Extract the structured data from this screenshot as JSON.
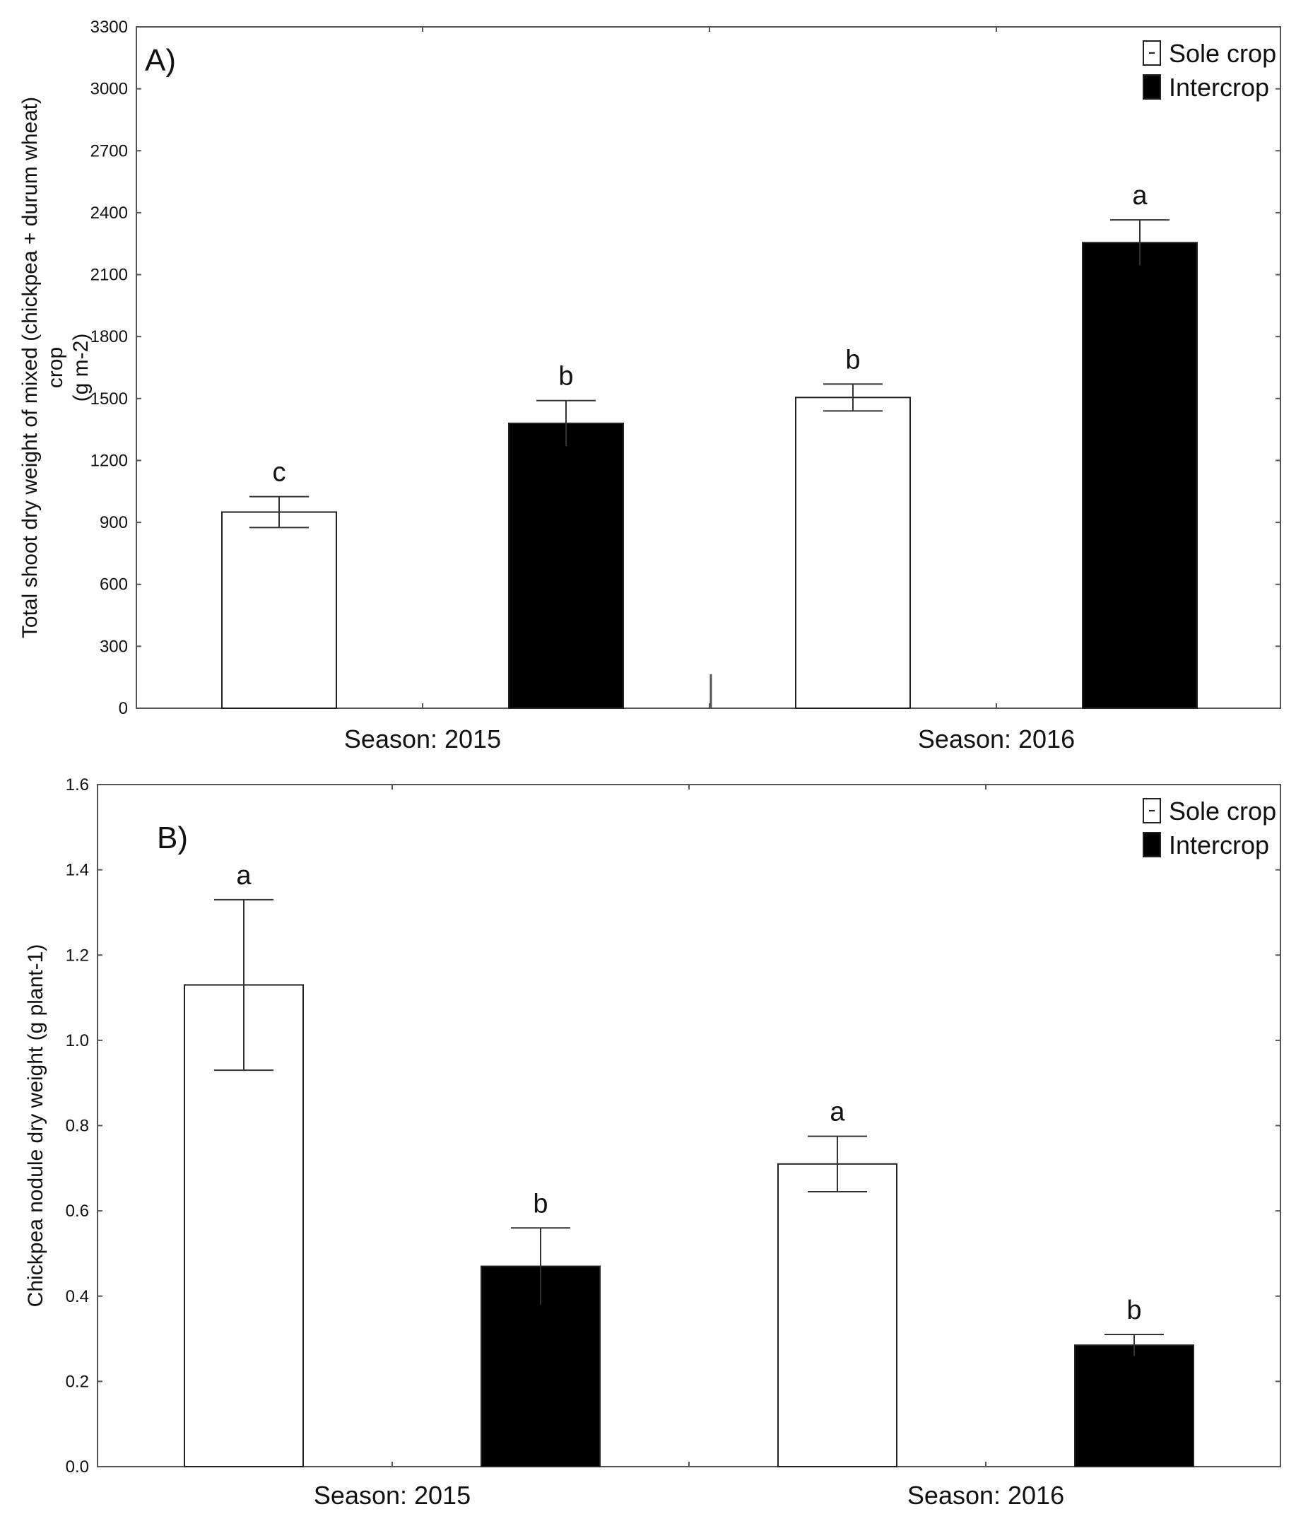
{
  "chart_data": [
    {
      "type": "bar",
      "panel_label": "A)",
      "categories": [
        "Season: 2015",
        "Season: 2016"
      ],
      "series": [
        {
          "name": "Sole crop",
          "color": "#ffffff",
          "values": [
            950,
            1505
          ],
          "error": [
            75,
            65
          ],
          "letters": [
            "c",
            "b"
          ]
        },
        {
          "name": "Intercrop",
          "color": "#000000",
          "values": [
            1380,
            2255
          ],
          "error": [
            110,
            110
          ],
          "letters": [
            "b",
            "a"
          ]
        }
      ],
      "ylabel_lines": [
        "Total shoot dry weight of mixed (chickpea + durum wheat)",
        "crop",
        "(g m-2)"
      ],
      "ylim": [
        0,
        3300
      ],
      "yticks": [
        0,
        300,
        600,
        900,
        1200,
        1500,
        1800,
        2100,
        2400,
        2700,
        3000,
        3300
      ],
      "ytick_labels": [
        "0",
        "300",
        "600",
        "900",
        "1200",
        "1500",
        "1800",
        "2100",
        "2400",
        "2700",
        "3000",
        "3300"
      ],
      "legend": {
        "position": "top-right",
        "entries": [
          "Sole crop",
          "Intercrop"
        ]
      }
    },
    {
      "type": "bar",
      "panel_label": "B)",
      "categories": [
        "Season: 2015",
        "Season: 2016"
      ],
      "series": [
        {
          "name": "Sole crop",
          "color": "#ffffff",
          "values": [
            1.13,
            0.71
          ],
          "error": [
            0.2,
            0.065
          ],
          "letters": [
            "a",
            "a"
          ]
        },
        {
          "name": "Intercrop",
          "color": "#000000",
          "values": [
            0.47,
            0.285
          ],
          "error": [
            0.09,
            0.025
          ],
          "letters": [
            "b",
            "b"
          ]
        }
      ],
      "ylabel_lines": [
        "Chickpea nodule dry weight (g plant-1)"
      ],
      "ylim": [
        0,
        1.6
      ],
      "yticks": [
        0,
        0.2,
        0.4,
        0.6,
        0.8,
        1.0,
        1.2,
        1.4,
        1.6
      ],
      "ytick_labels": [
        "0.0",
        "0.2",
        "0.4",
        "0.6",
        "0.8",
        "1.0",
        "1.2",
        "1.4",
        "1.6"
      ],
      "legend": {
        "position": "top-right",
        "entries": [
          "Sole crop",
          "Intercrop"
        ]
      }
    }
  ]
}
